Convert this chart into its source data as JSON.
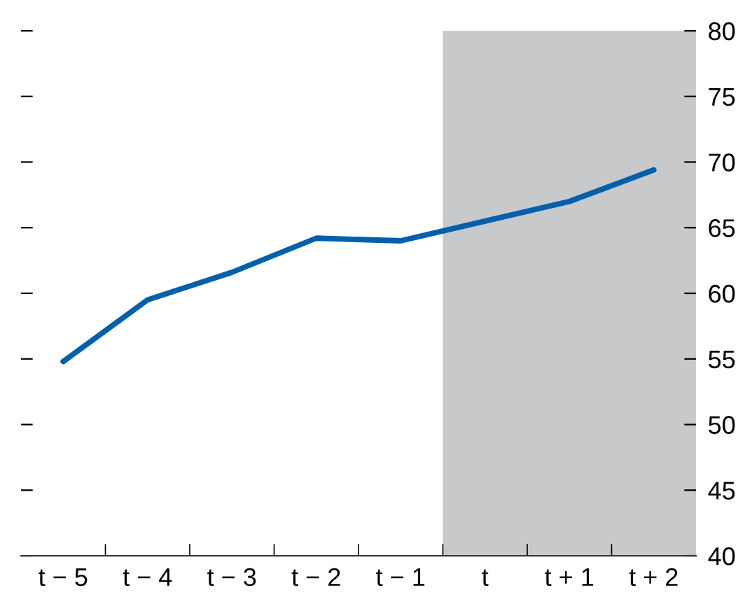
{
  "chart_data": {
    "type": "line",
    "x": [
      -5,
      -4,
      -3,
      -2,
      -1,
      0,
      1,
      2
    ],
    "values": [
      54.8,
      59.5,
      61.6,
      64.2,
      64.0,
      65.5,
      67.0,
      69.4
    ],
    "color": "#0060ac",
    "xlim": [
      -5.5,
      2.5
    ],
    "xticks": [
      {
        "value": -5,
        "label": "t − 5"
      },
      {
        "value": -4,
        "label": "t − 4"
      },
      {
        "value": -3,
        "label": "t − 3"
      },
      {
        "value": -2,
        "label": "t − 2"
      },
      {
        "value": -1,
        "label": "t − 1"
      },
      {
        "value": 0,
        "label": "t"
      },
      {
        "value": 1,
        "label": "t + 1"
      },
      {
        "value": 2,
        "label": "t + 2"
      },
      {
        "value": -4.5,
        "label": null
      },
      {
        "value": -3.5,
        "label": null
      },
      {
        "value": -2.5,
        "label": null
      },
      {
        "value": -1.5,
        "label": null
      },
      {
        "value": -0.5,
        "label": null
      },
      {
        "value": 0.5,
        "label": null
      },
      {
        "value": 1.5,
        "label": null
      }
    ],
    "ylim": [
      40,
      80
    ],
    "yticks": [
      40,
      45,
      50,
      55,
      60,
      65,
      70,
      75,
      80
    ],
    "bands": [
      {
        "axis": "x",
        "from": -0.5,
        "to": 2.5,
        "color": "#c8c9cb"
      }
    ],
    "grid": false,
    "legend": false,
    "marker": "none",
    "line_style": "solid"
  }
}
